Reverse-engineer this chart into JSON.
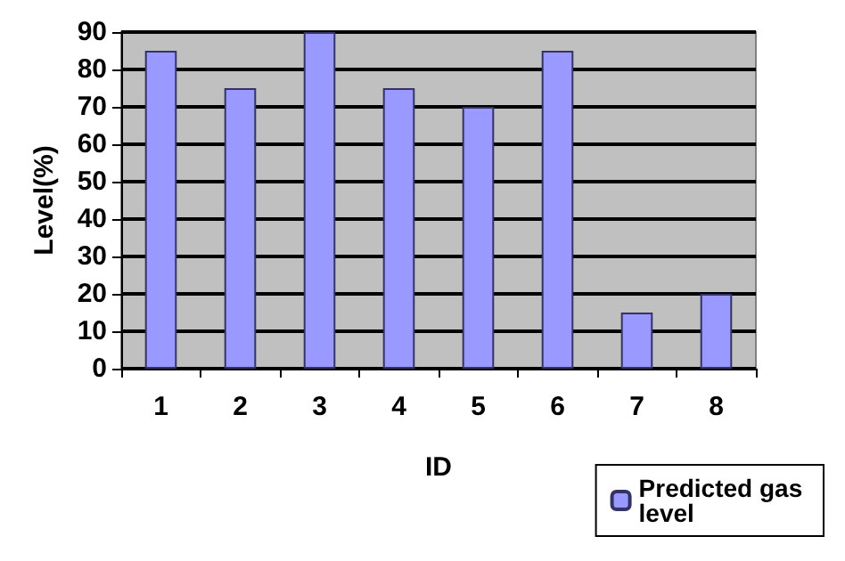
{
  "chart_data": {
    "type": "bar",
    "xlabel": "ID",
    "ylabel": "Level(%)",
    "categories": [
      "1",
      "2",
      "3",
      "4",
      "5",
      "6",
      "7",
      "8"
    ],
    "series": [
      {
        "name": "Predicted gas level",
        "color": "#9999ff",
        "values": [
          85,
          75,
          90,
          75,
          70,
          85,
          15,
          20
        ]
      }
    ],
    "ylim": [
      0,
      90
    ],
    "yticks": [
      0,
      10,
      20,
      30,
      40,
      50,
      60,
      70,
      80,
      90
    ],
    "grid": "y",
    "legend": "bottom right"
  }
}
